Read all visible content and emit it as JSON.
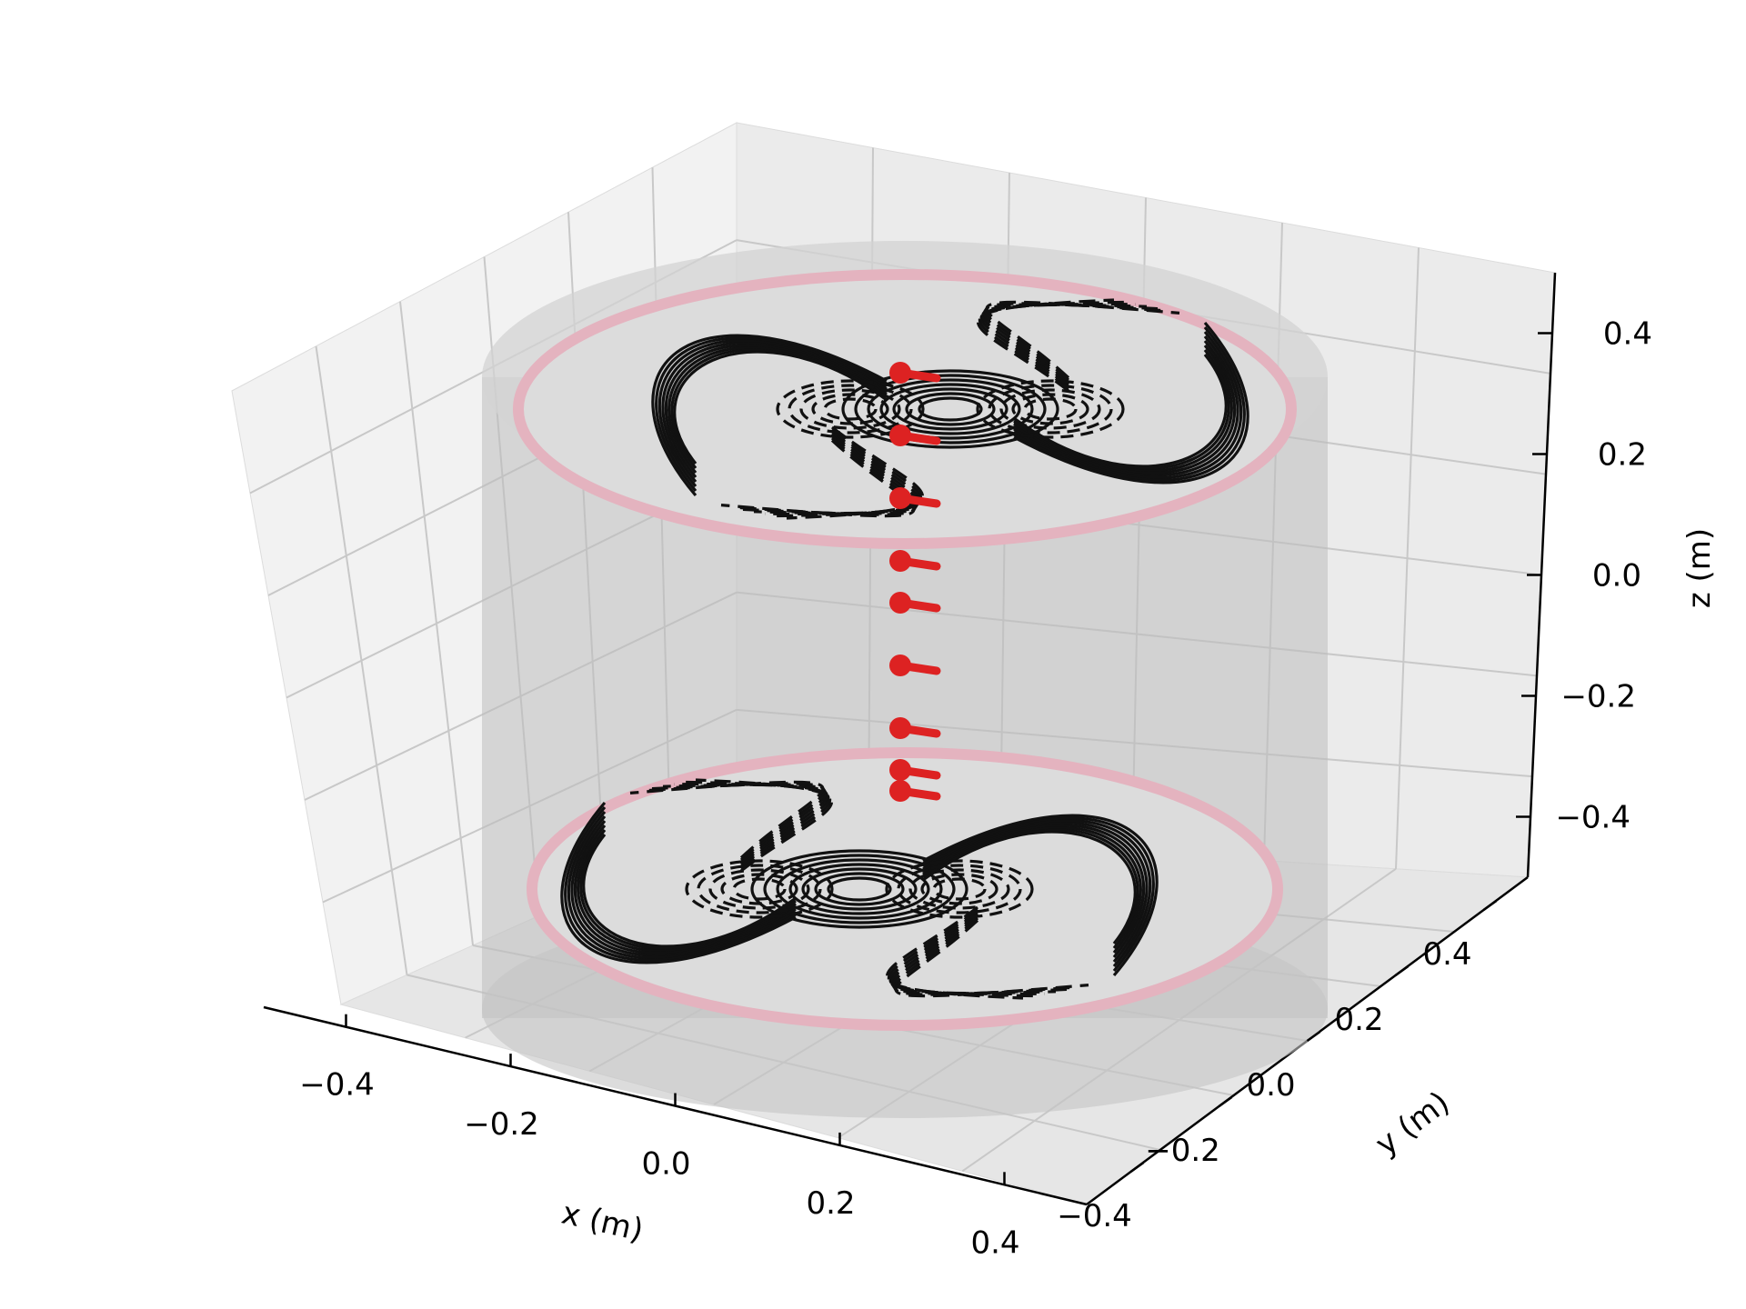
{
  "chart_data": {
    "type": "3d-contour-coils",
    "xlabel": "x (m)",
    "ylabel": "y (m)",
    "zlabel": "z (m)",
    "x_ticks": [
      "−0.4",
      "−0.2",
      "0.0",
      "0.2",
      "0.4"
    ],
    "y_ticks": [
      "−0.4",
      "−0.2",
      "0.0",
      "0.2",
      "0.4"
    ],
    "z_ticks": [
      "−0.4",
      "−0.2",
      "0.0",
      "0.2",
      "0.4"
    ],
    "xlim": [
      -0.5,
      0.5
    ],
    "ylim": [
      -0.5,
      0.5
    ],
    "zlim": [
      -0.55,
      0.55
    ],
    "grid": true,
    "cylinder": {
      "radius": 0.5,
      "z_range": [
        -0.5,
        0.5
      ],
      "color": "#b0b0b0"
    },
    "coil_planes": [
      {
        "z": 0.5,
        "radius": 0.47,
        "edge_color": "#e8b4c0",
        "contour_color": "#111111",
        "solid_and_dashed_contours": true
      },
      {
        "z": -0.5,
        "radius": 0.47,
        "edge_color": "#e8b4c0",
        "contour_color": "#111111",
        "solid_and_dashed_contours": true
      }
    ],
    "points": {
      "color": "#dd2222",
      "x": 0.0,
      "y": -0.05,
      "z": [
        0.5,
        0.35,
        0.2,
        0.05,
        -0.05,
        -0.2,
        -0.35,
        -0.45,
        -0.5
      ]
    }
  }
}
